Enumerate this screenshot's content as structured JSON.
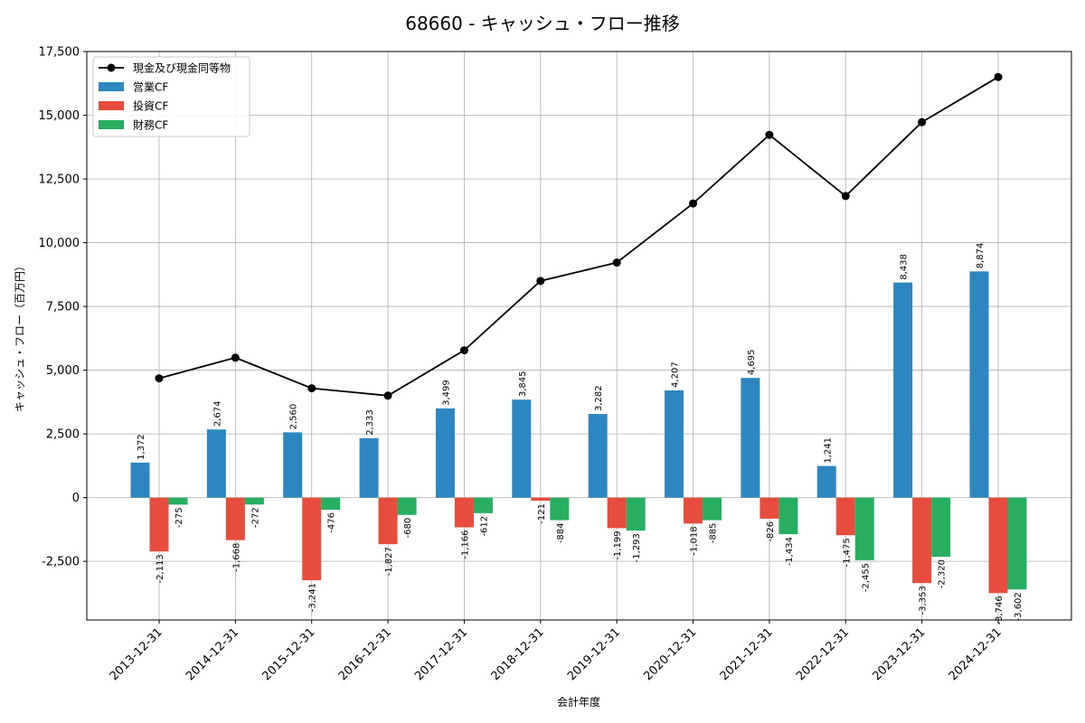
{
  "chart_data": {
    "type": "bar",
    "title": "68660 - キャッシュ・フロー推移",
    "xlabel": "会計年度",
    "ylabel": "キャッシュ・フロー（百万円）",
    "ylim": [
      -4800,
      17500
    ],
    "yticks": [
      -2500,
      0,
      2500,
      5000,
      7500,
      10000,
      12500,
      15000,
      17500
    ],
    "ytick_labels": [
      "-2,500",
      "0",
      "2,500",
      "5,000",
      "7,500",
      "10,000",
      "12,500",
      "15,000",
      "17,500"
    ],
    "grid": true,
    "legend_position": "top-left",
    "categories": [
      "2013-12-31",
      "2014-12-31",
      "2015-12-31",
      "2016-12-31",
      "2017-12-31",
      "2018-12-31",
      "2019-12-31",
      "2020-12-31",
      "2021-12-31",
      "2022-12-31",
      "2023-12-31",
      "2024-12-31"
    ],
    "series": [
      {
        "name": "営業CF",
        "kind": "bar",
        "color": "#2e86c1",
        "values": [
          1372,
          2674,
          2560,
          2333,
          3499,
          3845,
          3282,
          4207,
          4695,
          1241,
          8438,
          8874
        ],
        "labels": [
          "1,372",
          "2,674",
          "2,560",
          "2,333",
          "3,499",
          "3,845",
          "3,282",
          "4,207",
          "4,695",
          "1,241",
          "8,438",
          "8,874"
        ]
      },
      {
        "name": "投資CF",
        "kind": "bar",
        "color": "#e74c3c",
        "values": [
          -2113,
          -1668,
          -3241,
          -1827,
          -1166,
          -121,
          -1199,
          -1018,
          -826,
          -1475,
          -3353,
          -3746
        ],
        "labels": [
          "-2,113",
          "-1,668",
          "-3,241",
          "-1,827",
          "-1,166",
          "-121",
          "-1,199",
          "-1,018",
          "-826",
          "-1,475",
          "-3,353",
          "-3,746"
        ]
      },
      {
        "name": "財務CF",
        "kind": "bar",
        "color": "#27ae60",
        "values": [
          -275,
          -272,
          -476,
          -680,
          -612,
          -884,
          -1293,
          -885,
          -1434,
          -2455,
          -2320,
          -3602
        ],
        "labels": [
          "-275",
          "-272",
          "-476",
          "-680",
          "-612",
          "-884",
          "-1,293",
          "-885",
          "-1,434",
          "-2,455",
          "-2,320",
          "-3,602"
        ]
      },
      {
        "name": "現金及び現金同等物",
        "kind": "line",
        "color": "#000000",
        "values": [
          4680,
          5490,
          4290,
          4000,
          5780,
          8500,
          9220,
          11540,
          14230,
          11830,
          14730,
          16500
        ]
      }
    ]
  }
}
